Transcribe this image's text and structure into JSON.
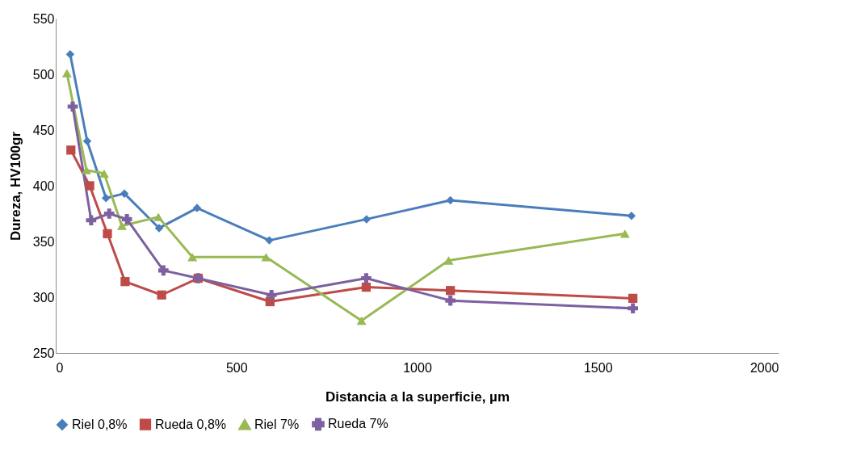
{
  "chart_data": {
    "type": "line",
    "xlabel": "Distancia a la superficie, µm",
    "ylabel": "Dureza, HV100gr",
    "xlim": [
      0,
      2000
    ],
    "xticks": [
      0,
      500,
      1000,
      1500,
      2000
    ],
    "ylim": [
      250,
      550
    ],
    "yticks": [
      250,
      300,
      350,
      400,
      450,
      500,
      550
    ],
    "grid": false,
    "legend": "bottom",
    "line_style": "solid",
    "series": [
      {
        "name": "Riel 0,8%",
        "color": "#4a7ebb",
        "marker": "diamond",
        "x": [
          40,
          87,
          139,
          190,
          286,
          391,
          591,
          860,
          1092,
          1593
        ],
        "values": [
          518,
          440,
          389,
          393,
          362,
          380,
          351,
          370,
          387,
          373
        ]
      },
      {
        "name": "Rueda 0,8%",
        "color": "#be4b48",
        "marker": "square",
        "x": [
          42,
          94,
          143,
          192,
          293,
          394,
          593,
          859,
          1092,
          1597
        ],
        "values": [
          432,
          400,
          357,
          314,
          302,
          317,
          296,
          309,
          306,
          299
        ]
      },
      {
        "name": "Riel 7%",
        "color": "#98b954",
        "marker": "triangle",
        "x": [
          31,
          85,
          134,
          183,
          284,
          378,
          582,
          846,
          1087,
          1575
        ],
        "values": [
          501,
          414,
          411,
          364,
          372,
          336,
          336,
          279,
          333,
          357
        ]
      },
      {
        "name": "Rueda 7%",
        "color": "#7d60a0",
        "marker": "cross",
        "x": [
          47,
          98,
          148,
          197,
          298,
          394,
          597,
          859,
          1092,
          1597
        ],
        "values": [
          471,
          369,
          375,
          370,
          324,
          317,
          302,
          317,
          297,
          290
        ]
      }
    ]
  }
}
